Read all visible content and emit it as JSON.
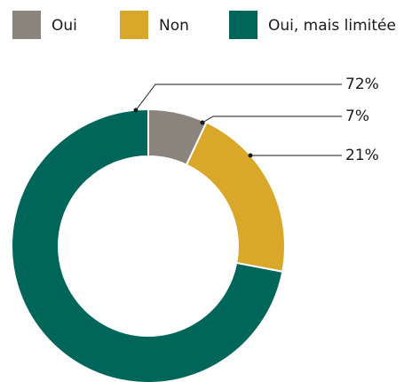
{
  "chart_data": {
    "type": "pie",
    "categories": [
      "Oui",
      "Non",
      "Oui, mais limitée"
    ],
    "values": [
      7,
      21,
      72
    ],
    "value_labels": [
      "7%",
      "21%",
      "72%"
    ],
    "colors": [
      "#8a847d",
      "#d9a82a",
      "#00665a"
    ],
    "legend": "top"
  }
}
